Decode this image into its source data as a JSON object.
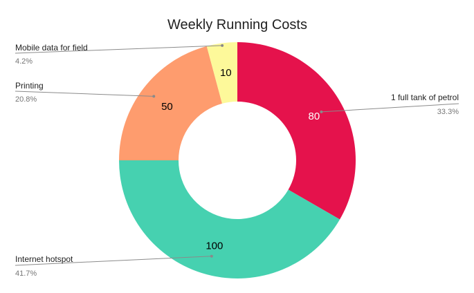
{
  "chart_data": {
    "type": "pie",
    "donut": true,
    "title": "Weekly Running Costs",
    "legend": "callout labels beside slices",
    "slices": [
      {
        "label": "1 full tank of petrol",
        "value": 80,
        "percent": "33.3%",
        "color": "#e5124c",
        "value_text_color": "#ffffff"
      },
      {
        "label": "Internet hotspot",
        "value": 100,
        "percent": "41.7%",
        "color": "#46d1b0",
        "value_text_color": "#000000"
      },
      {
        "label": "Printing",
        "value": 50,
        "percent": "20.8%",
        "color": "#fe9c6e",
        "value_text_color": "#000000"
      },
      {
        "label": "Mobile data for field",
        "value": 10,
        "percent": "4.2%",
        "color": "#fdf99a",
        "value_text_color": "#000000"
      }
    ]
  }
}
